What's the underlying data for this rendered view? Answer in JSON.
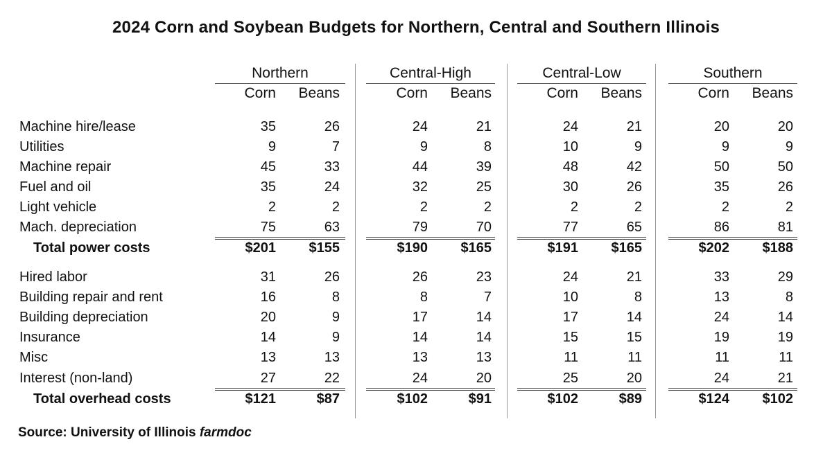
{
  "title": "2024 Corn and Soybean Budgets for Northern, Central and Southern Illinois",
  "groups": [
    {
      "name": "Northern",
      "col1": "Corn",
      "col2": "Beans"
    },
    {
      "name": "Central-High",
      "col1": "Corn",
      "col2": "Beans"
    },
    {
      "name": "Central-Low",
      "col1": "Corn",
      "col2": "Beans"
    },
    {
      "name": "Southern",
      "col1": "Corn",
      "col2": "Beans"
    }
  ],
  "power_rows": [
    {
      "label": "Machine hire/lease",
      "values": [
        "35",
        "26",
        "24",
        "21",
        "24",
        "21",
        "20",
        "20"
      ]
    },
    {
      "label": "Utilities",
      "values": [
        "9",
        "7",
        "9",
        "8",
        "10",
        "9",
        "9",
        "9"
      ]
    },
    {
      "label": "Machine repair",
      "values": [
        "45",
        "33",
        "44",
        "39",
        "48",
        "42",
        "50",
        "50"
      ]
    },
    {
      "label": "Fuel and oil",
      "values": [
        "35",
        "24",
        "32",
        "25",
        "30",
        "26",
        "35",
        "26"
      ]
    },
    {
      "label": "Light vehicle",
      "values": [
        "2",
        "2",
        "2",
        "2",
        "2",
        "2",
        "2",
        "2"
      ]
    },
    {
      "label": "Mach. depreciation",
      "values": [
        "75",
        "63",
        "79",
        "70",
        "77",
        "65",
        "86",
        "81"
      ]
    }
  ],
  "power_total": {
    "label": "Total power costs",
    "values": [
      "$201",
      "$155",
      "$190",
      "$165",
      "$191",
      "$165",
      "$202",
      "$188"
    ]
  },
  "overhead_rows": [
    {
      "label": "Hired labor",
      "values": [
        "31",
        "26",
        "26",
        "23",
        "24",
        "21",
        "33",
        "29"
      ]
    },
    {
      "label": "Building repair and rent",
      "values": [
        "16",
        "8",
        "8",
        "7",
        "10",
        "8",
        "13",
        "8"
      ]
    },
    {
      "label": "Building depreciation",
      "values": [
        "20",
        "9",
        "17",
        "14",
        "17",
        "14",
        "24",
        "14"
      ]
    },
    {
      "label": "Insurance",
      "values": [
        "14",
        "9",
        "14",
        "14",
        "15",
        "15",
        "19",
        "19"
      ]
    },
    {
      "label": "Misc",
      "values": [
        "13",
        "13",
        "13",
        "13",
        "11",
        "11",
        "11",
        "11"
      ]
    },
    {
      "label": "Interest (non-land)",
      "values": [
        "27",
        "22",
        "24",
        "20",
        "25",
        "20",
        "24",
        "21"
      ]
    }
  ],
  "overhead_total": {
    "label": "Total overhead costs",
    "values": [
      "$121",
      "$87",
      "$102",
      "$91",
      "$102",
      "$89",
      "$124",
      "$102"
    ]
  },
  "source": {
    "prefix": "Source: University of Illinois ",
    "italic": "farmdoc"
  }
}
